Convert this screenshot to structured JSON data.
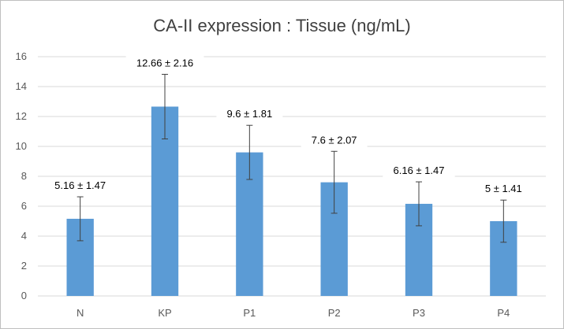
{
  "chart_data": {
    "type": "bar",
    "title": "CA-II expression : Tissue (ng/mL)",
    "xlabel": "",
    "ylabel": "",
    "categories": [
      "N",
      "KP",
      "P1",
      "P2",
      "P3",
      "P4"
    ],
    "values": [
      5.16,
      12.66,
      9.6,
      7.6,
      6.16,
      5.0
    ],
    "errors": [
      1.47,
      2.16,
      1.81,
      2.07,
      1.47,
      1.41
    ],
    "data_labels": [
      "5.16 ± 1.47",
      "12.66 ± 2.16",
      "9.6 ± 1.81",
      "7.6 ± 2.07",
      "6.16 ± 1.47",
      "5 ± 1.41"
    ],
    "ylim": [
      0,
      16
    ],
    "yticks": [
      0,
      2,
      4,
      6,
      8,
      10,
      12,
      14,
      16
    ],
    "grid": true,
    "legend": "none",
    "bar_color": "#5b9bd5",
    "error_bar_color": "#404040",
    "grid_color": "#d9d9d9"
  }
}
